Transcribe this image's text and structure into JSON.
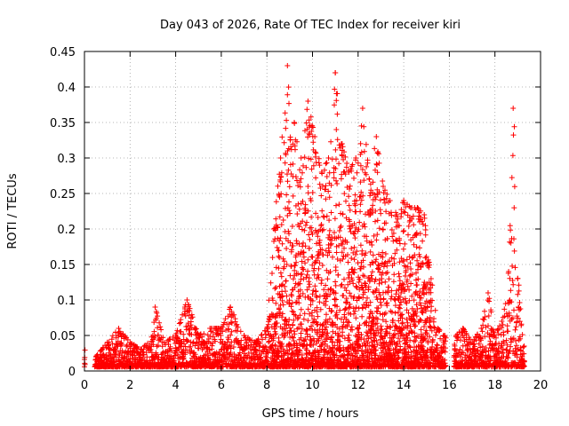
{
  "chart_data": {
    "type": "scatter",
    "title": "Day 043 of 2026, Rate Of TEC Index for receiver kiri",
    "xlabel": "GPS time / hours",
    "ylabel": "ROTI / TECUs",
    "xlim": [
      0,
      20
    ],
    "ylim": [
      0,
      0.45
    ],
    "xticks": [
      0,
      2,
      4,
      6,
      8,
      10,
      12,
      14,
      16,
      18,
      20
    ],
    "yticks": [
      0,
      0.05,
      0.1,
      0.15,
      0.2,
      0.25,
      0.3,
      0.35,
      0.4,
      0.45
    ],
    "grid": true,
    "marker": "+",
    "series": [
      {
        "name": "ROTI",
        "color": "#ff0000",
        "envelope_hours": [
          0.0,
          0.5,
          1.0,
          1.5,
          2.0,
          2.5,
          3.0,
          3.1,
          3.5,
          4.0,
          4.5,
          5.0,
          5.5,
          6.0,
          6.4,
          7.0,
          7.5,
          8.0,
          8.3,
          8.6,
          8.9,
          9.2,
          9.5,
          9.8,
          10.1,
          10.4,
          10.7,
          11.0,
          11.3,
          11.6,
          11.9,
          12.2,
          12.5,
          12.8,
          13.1,
          13.4,
          13.7,
          14.0,
          14.3,
          14.6,
          14.9,
          15.2,
          15.5,
          15.8,
          16.0,
          16.3,
          16.6,
          17.0,
          17.4,
          17.7,
          18.0,
          18.3,
          18.6,
          18.8,
          19.0,
          19.3
        ],
        "envelope_max_roti": [
          0.03,
          0.02,
          0.04,
          0.06,
          0.04,
          0.03,
          0.05,
          0.09,
          0.04,
          0.05,
          0.1,
          0.05,
          0.06,
          0.06,
          0.09,
          0.05,
          0.04,
          0.06,
          0.2,
          0.3,
          0.43,
          0.35,
          0.3,
          0.38,
          0.33,
          0.28,
          0.3,
          0.42,
          0.32,
          0.28,
          0.3,
          0.37,
          0.27,
          0.33,
          0.26,
          0.24,
          0.22,
          0.24,
          0.23,
          0.23,
          0.22,
          0.13,
          0.06,
          0.05,
          0.0,
          0.05,
          0.06,
          0.04,
          0.06,
          0.11,
          0.05,
          0.07,
          0.14,
          0.37,
          0.13,
          0.03
        ]
      }
    ]
  }
}
